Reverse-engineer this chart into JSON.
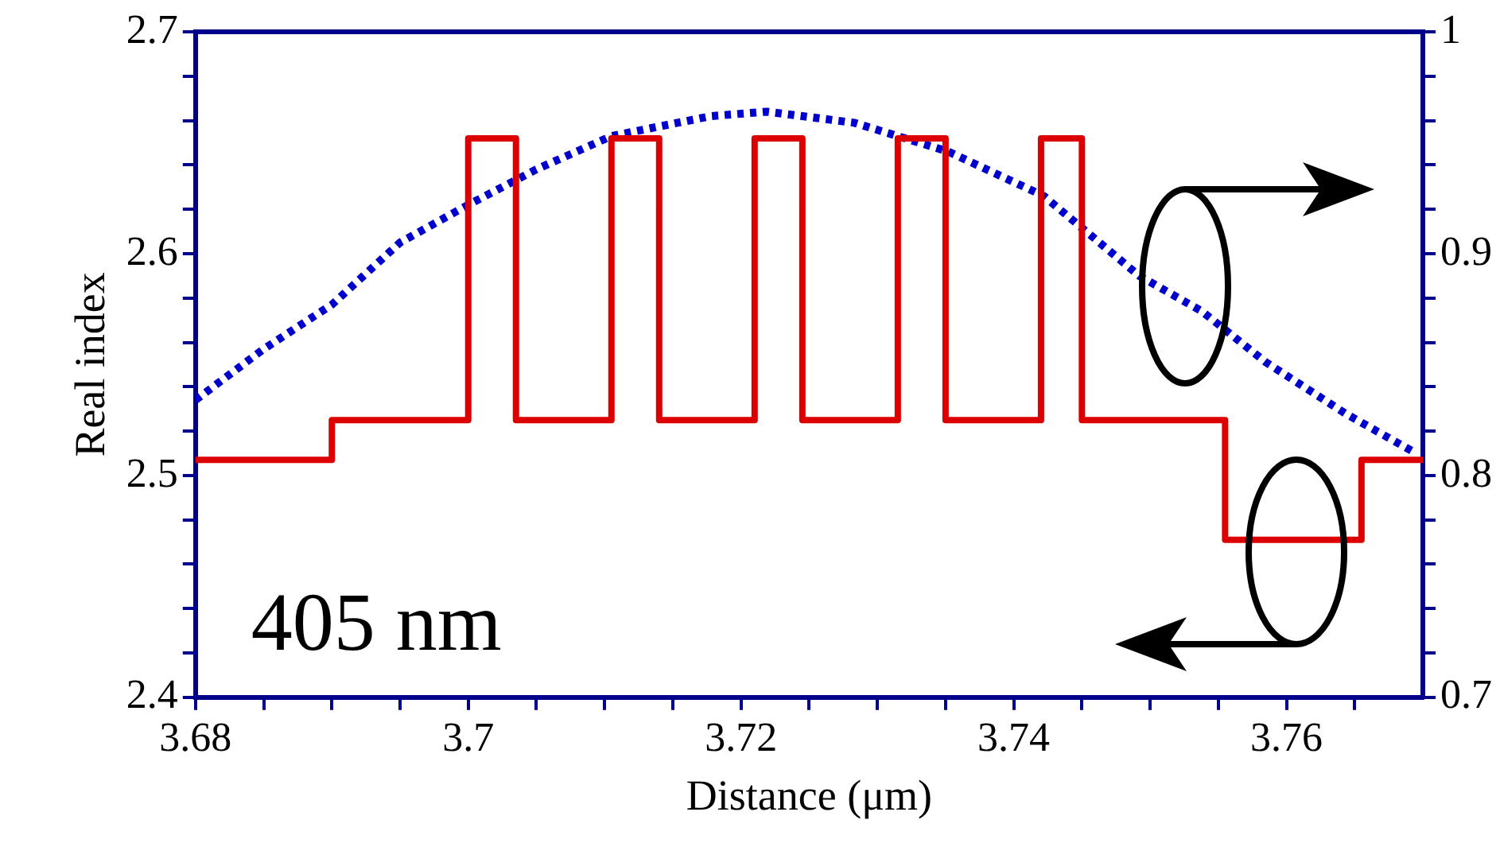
{
  "chart_data": {
    "type": "line",
    "xlabel": "Distance (μm)",
    "ylabel": "Real index",
    "xlim": [
      3.68,
      3.77
    ],
    "xticks": [
      3.68,
      {
        "value": 3.685,
        "label": null
      },
      {
        "value": 3.69,
        "label": null
      },
      {
        "value": 3.695,
        "label": null
      },
      3.7,
      {
        "value": 3.705,
        "label": null
      },
      {
        "value": 3.71,
        "label": null
      },
      {
        "value": 3.715,
        "label": null
      },
      3.72,
      {
        "value": 3.725,
        "label": null
      },
      {
        "value": 3.73,
        "label": null
      },
      {
        "value": 3.735,
        "label": null
      },
      3.74,
      {
        "value": 3.745,
        "label": null
      },
      {
        "value": 3.75,
        "label": null
      },
      {
        "value": 3.755,
        "label": null
      },
      3.76,
      {
        "value": 3.765,
        "label": null
      }
    ],
    "ylim": [
      2.4,
      2.7
    ],
    "yticks": [
      2.4,
      {
        "value": 2.42,
        "label": null
      },
      {
        "value": 2.44,
        "label": null
      },
      {
        "value": 2.46,
        "label": null
      },
      {
        "value": 2.48,
        "label": null
      },
      2.5,
      {
        "value": 2.52,
        "label": null
      },
      {
        "value": 2.54,
        "label": null
      },
      {
        "value": 2.56,
        "label": null
      },
      {
        "value": 2.58,
        "label": null
      },
      2.6,
      {
        "value": 2.62,
        "label": null
      },
      {
        "value": 2.64,
        "label": null
      },
      {
        "value": 2.66,
        "label": null
      },
      {
        "value": 2.68,
        "label": null
      },
      2.7
    ],
    "y2lim": [
      0.7,
      1
    ],
    "y2ticks": [
      0.7,
      {
        "value": 0.72,
        "label": null
      },
      {
        "value": 0.74,
        "label": null
      },
      {
        "value": 0.76,
        "label": null
      },
      {
        "value": 0.78,
        "label": null
      },
      0.8,
      {
        "value": 0.82,
        "label": null
      },
      {
        "value": 0.84,
        "label": null
      },
      {
        "value": 0.86,
        "label": null
      },
      {
        "value": 0.88,
        "label": null
      },
      0.9,
      {
        "value": 0.92,
        "label": null
      },
      {
        "value": 0.94,
        "label": null
      },
      {
        "value": 0.96,
        "label": null
      },
      {
        "value": 0.98,
        "label": null
      },
      1
    ],
    "grid": false,
    "legend": false,
    "marker": "none",
    "annotations": [
      "405 nm"
    ],
    "series": [
      {
        "type": "step",
        "color": "#dd0000",
        "line_style": "solid",
        "x": [
          3.68,
          3.69,
          3.7,
          3.7035,
          3.7105,
          3.714,
          3.721,
          3.7245,
          3.7315,
          3.735,
          3.742,
          3.745,
          3.7555,
          3.7655,
          3.77
        ],
        "values": [
          2.507,
          2.525,
          2.652,
          2.525,
          2.652,
          2.525,
          2.652,
          2.525,
          2.652,
          2.525,
          2.652,
          2.525,
          2.471,
          2.507,
          2.507
        ]
      },
      {
        "type": "line",
        "axis": "y2",
        "color": "#0000cc",
        "line_style": "dotted",
        "x": [
          3.68,
          3.685,
          3.69,
          3.695,
          3.7,
          3.705,
          3.7105,
          3.7178,
          3.7219,
          3.7283,
          3.7352,
          3.7422,
          3.7492,
          3.7538,
          3.7585,
          3.7643,
          3.7695
        ],
        "values": [
          0.834,
          0.857,
          0.877,
          0.905,
          0.922,
          0.938,
          0.953,
          0.962,
          0.964,
          0.959,
          0.946,
          0.926,
          0.89,
          0.874,
          0.851,
          0.828,
          0.81
        ]
      }
    ]
  }
}
